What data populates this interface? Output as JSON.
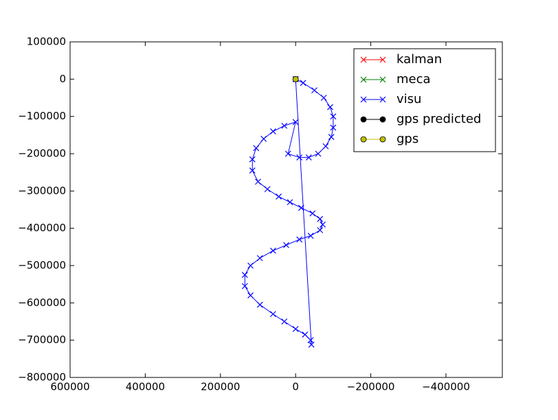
{
  "chart_data": {
    "type": "line",
    "xlim": [
      600000,
      -550000
    ],
    "ylim": [
      -800000,
      100000
    ],
    "xticks": [
      600000,
      400000,
      200000,
      0,
      {
        "value": -200000,
        "label": "−200000"
      },
      {
        "value": -400000,
        "label": "−400000"
      }
    ],
    "yticks": [
      100000,
      0,
      {
        "value": -100000,
        "label": "−100000"
      },
      {
        "value": -200000,
        "label": "−200000"
      },
      {
        "value": -300000,
        "label": "−300000"
      },
      {
        "value": -400000,
        "label": "−400000"
      },
      {
        "value": -500000,
        "label": "−500000"
      },
      {
        "value": -600000,
        "label": "−600000"
      },
      {
        "value": -700000,
        "label": "−700000"
      },
      {
        "value": -800000,
        "label": "−800000"
      }
    ],
    "legend": "upper right",
    "series": [
      {
        "name": "kalman",
        "color": "#ff0000",
        "marker": "x",
        "x": [],
        "values": []
      },
      {
        "name": "meca",
        "color": "#008000",
        "marker": "x",
        "x": [],
        "values": []
      },
      {
        "name": "visu",
        "color": "#0000ff",
        "marker": "x",
        "x": [
          0,
          -20000,
          -50000,
          -75000,
          -92000,
          -100000,
          -100000,
          -95000,
          -80000,
          -60000,
          -35000,
          -10000,
          20000,
          0,
          30000,
          60000,
          85000,
          105000,
          115000,
          115000,
          100000,
          75000,
          45000,
          15000,
          -15000,
          -45000,
          -65000,
          -72000,
          -65000,
          -40000,
          -10000,
          25000,
          60000,
          95000,
          120000,
          135000,
          135000,
          120000,
          95000,
          60000,
          30000,
          0,
          -25000,
          -40000,
          -42000,
          0
        ],
        "values": [
          0,
          -10000,
          -30000,
          -50000,
          -75000,
          -100000,
          -130000,
          -155000,
          -180000,
          -200000,
          -210000,
          -210000,
          -200000,
          -115000,
          -125000,
          -140000,
          -160000,
          -185000,
          -215000,
          -245000,
          -275000,
          -295000,
          -315000,
          -330000,
          -345000,
          -360000,
          -375000,
          -390000,
          -405000,
          -420000,
          -430000,
          -445000,
          -460000,
          -480000,
          -500000,
          -525000,
          -555000,
          -580000,
          -605000,
          -630000,
          -650000,
          -670000,
          -685000,
          -700000,
          -712000,
          0
        ]
      },
      {
        "name": "gps predicted",
        "color": "#000000",
        "marker": "o",
        "x": [
          0
        ],
        "values": [
          0
        ]
      },
      {
        "name": "gps",
        "color": "#bfbf00",
        "marker": "o",
        "x": [
          0
        ],
        "values": [
          0
        ]
      }
    ]
  }
}
